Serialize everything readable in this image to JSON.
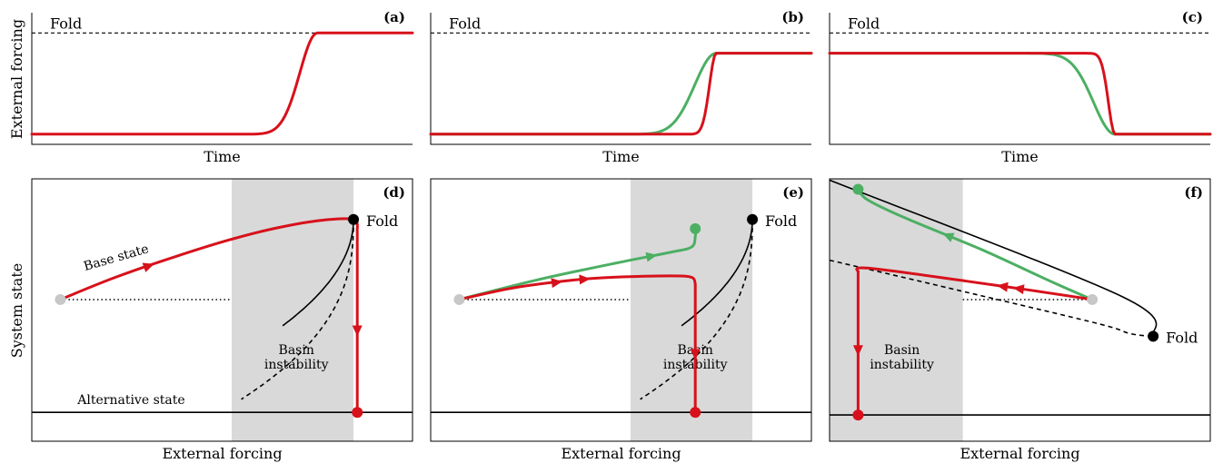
{
  "figure": {
    "ylabel_top": "External forcing",
    "ylabel_bottom": "System state",
    "xlabel_top": "Time",
    "xlabel_bottom": "External forcing"
  },
  "colors": {
    "red": "#d7111b",
    "green": "#4caf63",
    "shade": "#d9d9d9",
    "start": "#c7c7c7",
    "black": "#000000"
  },
  "chart_data": [
    {
      "id": "a",
      "type": "line",
      "panel_label": "(a)",
      "fold_label": "Fold",
      "xlabel": "Time",
      "ylabel": "External forcing",
      "xlim": [
        0,
        10
      ],
      "ylim": [
        0,
        1.3
      ],
      "fold_level": 1.1,
      "series": [
        {
          "name": "forcing",
          "color": "red",
          "shape": "rise",
          "start": 0.1,
          "end": 1.1,
          "t_mid": 6.5,
          "width": 0.65,
          "t_end": 7.5
        }
      ]
    },
    {
      "id": "b",
      "type": "line",
      "panel_label": "(b)",
      "fold_label": "Fold",
      "xlabel": "Time",
      "ylabel": "",
      "xlim": [
        0,
        10
      ],
      "ylim": [
        0,
        1.3
      ],
      "fold_level": 1.1,
      "series": [
        {
          "name": "slow forcing",
          "color": "green",
          "shape": "rise",
          "start": 0.1,
          "end": 0.9,
          "t_mid": 6.3,
          "width": 0.8,
          "t_end": 7.5
        },
        {
          "name": "fast forcing",
          "color": "red",
          "shape": "rise",
          "start": 0.1,
          "end": 0.9,
          "t_mid": 7.0,
          "width": 0.25,
          "t_end": 7.5
        }
      ]
    },
    {
      "id": "c",
      "type": "line",
      "panel_label": "(c)",
      "fold_label": "Fold",
      "xlabel": "Time",
      "ylabel": "",
      "xlim": [
        0,
        10
      ],
      "ylim": [
        0,
        1.3
      ],
      "fold_level": 1.1,
      "series": [
        {
          "name": "slow forcing",
          "color": "green",
          "shape": "fall",
          "start": 0.9,
          "end": 0.1,
          "t_mid": 5.6,
          "width": 0.8,
          "t_end": 7.5
        },
        {
          "name": "fast forcing",
          "color": "red",
          "shape": "fall",
          "start": 0.9,
          "end": 0.1,
          "t_mid": 7.2,
          "width": 0.25,
          "t_end": 7.5
        }
      ]
    },
    {
      "id": "d",
      "type": "line",
      "panel_label": "(d)",
      "fold_label": "Fold",
      "xlabel": "External forcing",
      "ylabel": "System state",
      "xlim": [
        0,
        10
      ],
      "ylim": [
        0,
        10
      ],
      "shade": [
        5.25,
        8.45
      ],
      "basin_label": "Basin\ninstability",
      "base_state_label": "Base state",
      "alt_state_label": "Alternative state",
      "stable_branch": {
        "fold_x": 8.45,
        "fold_y": 8.45,
        "a": 0.1135
      },
      "unstable_branch": {
        "fold_x": 8.45,
        "fold_y": 8.45,
        "a": 0.024
      },
      "alt_state_y": 1.1,
      "start_point": [
        0.75,
        5.4
      ],
      "dotted_to_x": 5.25,
      "red_path": [
        [
          0.75,
          5.4
        ],
        [
          2.2,
          6.25
        ],
        [
          3.8,
          7.05
        ],
        [
          5.25,
          7.7
        ],
        [
          6.5,
          8.15
        ],
        [
          7.6,
          8.42
        ],
        [
          8.45,
          8.45
        ],
        [
          8.55,
          8.0
        ],
        [
          8.55,
          1.1
        ]
      ],
      "red_arrows": [
        {
          "at": 1,
          "frac": 0.55
        },
        {
          "at": 7,
          "frac": 0.55
        }
      ],
      "markers": [
        {
          "x": 8.45,
          "y": 8.45,
          "color": "black"
        },
        {
          "x": 8.55,
          "y": 1.1,
          "color": "red"
        }
      ]
    },
    {
      "id": "e",
      "type": "line",
      "panel_label": "(e)",
      "fold_label": "Fold",
      "xlabel": "External forcing",
      "ylabel": "",
      "xlim": [
        0,
        10
      ],
      "ylim": [
        0,
        10
      ],
      "shade": [
        5.25,
        8.45
      ],
      "basin_label": "Basin\ninstability",
      "stable_branch": {
        "fold_x": 8.45,
        "fold_y": 8.45,
        "a": 0.1135
      },
      "unstable_branch": {
        "fold_x": 8.45,
        "fold_y": 8.45,
        "a": 0.024
      },
      "alt_state_y": 1.1,
      "start_point": [
        0.75,
        5.4
      ],
      "dotted_to_x": 5.25,
      "green_path": [
        [
          0.75,
          5.4
        ],
        [
          2.8,
          6.15
        ],
        [
          4.9,
          6.8
        ],
        [
          6.3,
          7.2
        ],
        [
          6.85,
          7.4
        ],
        [
          6.95,
          7.8
        ],
        [
          6.95,
          8.1
        ]
      ],
      "green_arrows": [
        {
          "at": 2,
          "frac": 0.65
        }
      ],
      "red_path": [
        [
          0.75,
          5.4
        ],
        [
          2.2,
          5.85
        ],
        [
          3.8,
          6.15
        ],
        [
          4.8,
          6.25
        ],
        [
          6.3,
          6.3
        ],
        [
          6.85,
          6.25
        ],
        [
          6.95,
          6.0
        ],
        [
          6.95,
          1.1
        ]
      ],
      "red_arrows": [
        {
          "at": 1,
          "frac": 0.7
        },
        {
          "at": 2,
          "frac": 0.25
        },
        {
          "at": 6,
          "frac": 0.55
        }
      ],
      "markers": [
        {
          "x": 8.45,
          "y": 8.45,
          "color": "black"
        },
        {
          "x": 6.95,
          "y": 8.1,
          "color": "green"
        },
        {
          "x": 6.95,
          "y": 1.1,
          "color": "red"
        }
      ]
    },
    {
      "id": "f",
      "type": "line",
      "panel_label": "(f)",
      "fold_label": "Fold",
      "xlabel": "External forcing",
      "ylabel": "",
      "xlim": [
        0,
        10
      ],
      "ylim": [
        0,
        10
      ],
      "shade": [
        0,
        3.5
      ],
      "basin_label": "Basin\ninstability",
      "fold_point": [
        8.5,
        4.0
      ],
      "stable_line": [
        [
          0,
          9.95
        ],
        [
          7.7,
          5.5
        ],
        [
          8.5,
          4.0
        ]
      ],
      "unstable_line": [
        [
          0,
          6.9
        ],
        [
          2.8,
          5.95
        ],
        [
          7.0,
          4.5
        ],
        [
          7.9,
          4.1
        ],
        [
          8.5,
          4.0
        ]
      ],
      "alt_state_y": 1.0,
      "start_point": [
        6.9,
        5.4
      ],
      "dotted_from_x": 3.5,
      "green_path": [
        [
          6.9,
          5.4
        ],
        [
          5.8,
          6.1
        ],
        [
          4.0,
          7.3
        ],
        [
          2.0,
          8.5
        ],
        [
          1.0,
          9.2
        ],
        [
          0.75,
          9.6
        ]
      ],
      "green_arrows": [
        {
          "at": 2,
          "frac": 0.45
        }
      ],
      "red_path": [
        [
          6.9,
          5.4
        ],
        [
          5.3,
          5.75
        ],
        [
          3.6,
          6.1
        ],
        [
          1.0,
          6.6
        ],
        [
          0.75,
          6.45
        ],
        [
          0.75,
          1.0
        ]
      ],
      "red_arrows": [
        {
          "at": 1,
          "frac": 0.2
        },
        {
          "at": 1,
          "frac": 0.45
        },
        {
          "at": 4,
          "frac": 0.55
        }
      ],
      "markers": [
        {
          "x": 8.5,
          "y": 4.0,
          "color": "black"
        },
        {
          "x": 0.75,
          "y": 9.6,
          "color": "green"
        },
        {
          "x": 0.75,
          "y": 1.0,
          "color": "red"
        }
      ]
    }
  ]
}
